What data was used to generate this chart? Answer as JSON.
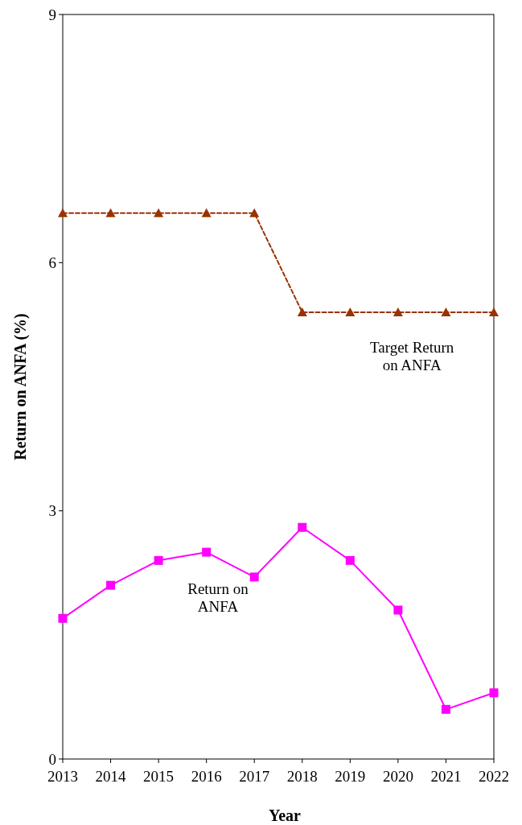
{
  "chart_data": {
    "type": "line",
    "xlabel": "Year",
    "ylabel": "Return on ANFA (%)",
    "x": [
      2013,
      2014,
      2015,
      2016,
      2017,
      2018,
      2019,
      2020,
      2021,
      2022
    ],
    "xlim": [
      2013,
      2022
    ],
    "xticks": [
      2013,
      2014,
      2015,
      2016,
      2017,
      2018,
      2019,
      2020,
      2021,
      2022
    ],
    "ylim": [
      0,
      9
    ],
    "yticks": [
      0,
      3,
      6,
      9
    ],
    "grid": false,
    "series": [
      {
        "name": "Target Return on ANFA",
        "color": "#993300",
        "marker": "triangle",
        "line_style": "dashed",
        "values": [
          6.6,
          6.6,
          6.6,
          6.6,
          6.6,
          5.4,
          5.4,
          5.4,
          5.4,
          5.4
        ]
      },
      {
        "name": "Return on ANFA",
        "color": "#ff00ff",
        "marker": "square",
        "line_style": "solid",
        "values": [
          1.7,
          2.1,
          2.4,
          2.5,
          2.2,
          2.8,
          2.4,
          1.8,
          0.6,
          0.8
        ]
      }
    ]
  }
}
